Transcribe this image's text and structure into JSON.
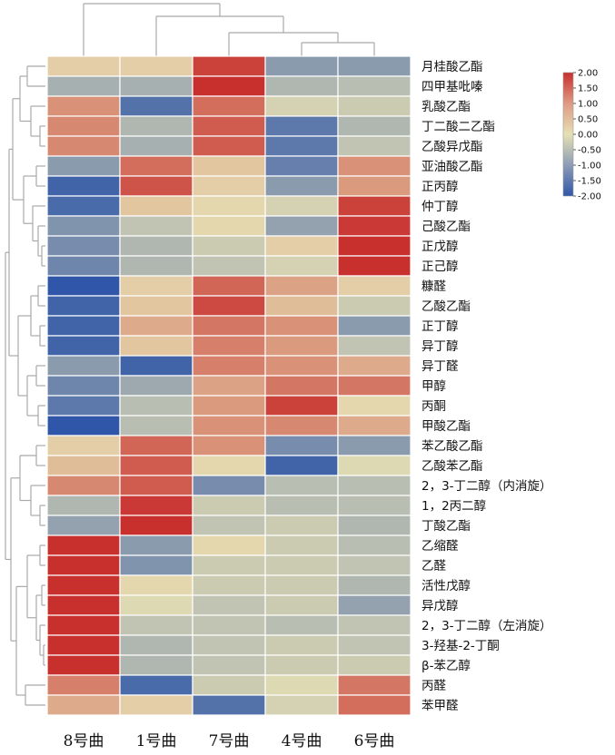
{
  "chart_data": {
    "type": "heatmap",
    "columns": [
      "8号曲",
      "1号曲",
      "7号曲",
      "4号曲",
      "6号曲"
    ],
    "rows": [
      {
        "name": "月桂酸乙酯",
        "values": [
          0.2,
          0.2,
          1.8,
          -1.0,
          -1.0
        ]
      },
      {
        "name": "四甲基吡嗪",
        "values": [
          -0.7,
          -0.7,
          2.0,
          -0.6,
          -0.5
        ]
      },
      {
        "name": "乳酸乙酯",
        "values": [
          0.9,
          -1.6,
          1.3,
          -0.2,
          -0.3
        ]
      },
      {
        "name": "丁二酸二乙酯",
        "values": [
          1.0,
          -0.6,
          1.5,
          -1.5,
          -0.6
        ]
      },
      {
        "name": "乙酸异戊酯",
        "values": [
          1.0,
          -0.7,
          1.5,
          -1.5,
          -0.4
        ]
      },
      {
        "name": "亚油酸乙酯",
        "values": [
          -1.0,
          1.3,
          0.3,
          -1.4,
          0.9
        ]
      },
      {
        "name": "正丙醇",
        "values": [
          -1.8,
          1.6,
          0.2,
          -1.0,
          0.8
        ]
      },
      {
        "name": "仲丁醇",
        "values": [
          -1.7,
          0.3,
          0.1,
          -0.2,
          1.8
        ]
      },
      {
        "name": "己酸乙酯",
        "values": [
          -1.1,
          -0.4,
          0.1,
          -0.9,
          1.9
        ]
      },
      {
        "name": "正戊醇",
        "values": [
          -1.2,
          -0.6,
          -0.3,
          0.2,
          2.0
        ]
      },
      {
        "name": "正己醇",
        "values": [
          -1.3,
          -0.6,
          -0.4,
          -0.2,
          2.0
        ]
      },
      {
        "name": "糠醛",
        "values": [
          -2.0,
          0.2,
          1.4,
          0.7,
          0.2
        ]
      },
      {
        "name": "乙酸乙酯",
        "values": [
          -1.8,
          0.3,
          1.7,
          0.4,
          -0.3
        ]
      },
      {
        "name": "正丁醇",
        "values": [
          -1.8,
          0.6,
          1.2,
          0.9,
          -1.0
        ]
      },
      {
        "name": "异丁醇",
        "values": [
          -1.8,
          0.3,
          1.1,
          0.8,
          -0.4
        ]
      },
      {
        "name": "异丁醛",
        "values": [
          -1.0,
          -1.8,
          1.1,
          0.9,
          0.6
        ]
      },
      {
        "name": "甲醇",
        "values": [
          -1.3,
          -0.8,
          0.7,
          1.2,
          1.2
        ]
      },
      {
        "name": "丙酮",
        "values": [
          -1.5,
          -0.5,
          0.8,
          1.8,
          0.1
        ]
      },
      {
        "name": "甲酸乙酯",
        "values": [
          -2.0,
          -0.5,
          0.9,
          1.0,
          0.6
        ]
      },
      {
        "name": "苯乙酸乙酯",
        "values": [
          0.2,
          1.4,
          0.9,
          -1.2,
          -1.0
        ]
      },
      {
        "name": "乙酸苯乙酯",
        "values": [
          0.4,
          1.5,
          0.1,
          -1.8,
          -0.1
        ]
      },
      {
        "name": "2，3-丁二醇（内消旋）",
        "values": [
          1.0,
          1.5,
          -1.2,
          -0.5,
          -0.5
        ]
      },
      {
        "name": "1，2丙二醇",
        "values": [
          -0.6,
          1.9,
          -0.3,
          -0.5,
          -0.5
        ]
      },
      {
        "name": "丁酸乙酯",
        "values": [
          -0.9,
          2.0,
          -0.4,
          -0.3,
          -0.6
        ]
      },
      {
        "name": "乙缩醛",
        "values": [
          2.0,
          -1.0,
          0.1,
          -0.3,
          -0.5
        ]
      },
      {
        "name": "乙醛",
        "values": [
          2.0,
          -1.1,
          -0.3,
          -0.3,
          -0.4
        ]
      },
      {
        "name": "活性戊醇",
        "values": [
          2.0,
          0.1,
          -0.3,
          -0.3,
          -0.6
        ]
      },
      {
        "name": "异戊醇",
        "values": [
          2.0,
          -0.1,
          -0.4,
          -0.3,
          -0.9
        ]
      },
      {
        "name": "2，3-丁二醇（左消旋）",
        "values": [
          2.0,
          -0.4,
          -0.4,
          -0.5,
          -0.4
        ]
      },
      {
        "name": "3-羟基-2-丁酮",
        "values": [
          2.0,
          -0.6,
          -0.4,
          -0.3,
          -0.4
        ]
      },
      {
        "name": "β-苯乙醇",
        "values": [
          2.0,
          -0.6,
          -0.4,
          -0.3,
          -0.3
        ]
      },
      {
        "name": "丙醛",
        "values": [
          1.1,
          -1.7,
          -0.3,
          -0.1,
          1.2
        ]
      },
      {
        "name": "苯甲醛",
        "values": [
          0.6,
          0.2,
          -1.6,
          -0.2,
          1.3
        ]
      }
    ],
    "legend": {
      "ticks": [
        "2.00",
        "1.50",
        "1.00",
        "0.50",
        "0.00",
        "-0.50",
        "-1.00",
        "-1.50",
        "-2.00"
      ],
      "range": [
        -2.0,
        2.0
      ],
      "placement": "top-right"
    },
    "colors": {
      "low": "#2f56a8",
      "mid": "#e6e0b4",
      "high": "#c8302e",
      "dendrogram": "#a9a9a9"
    }
  }
}
